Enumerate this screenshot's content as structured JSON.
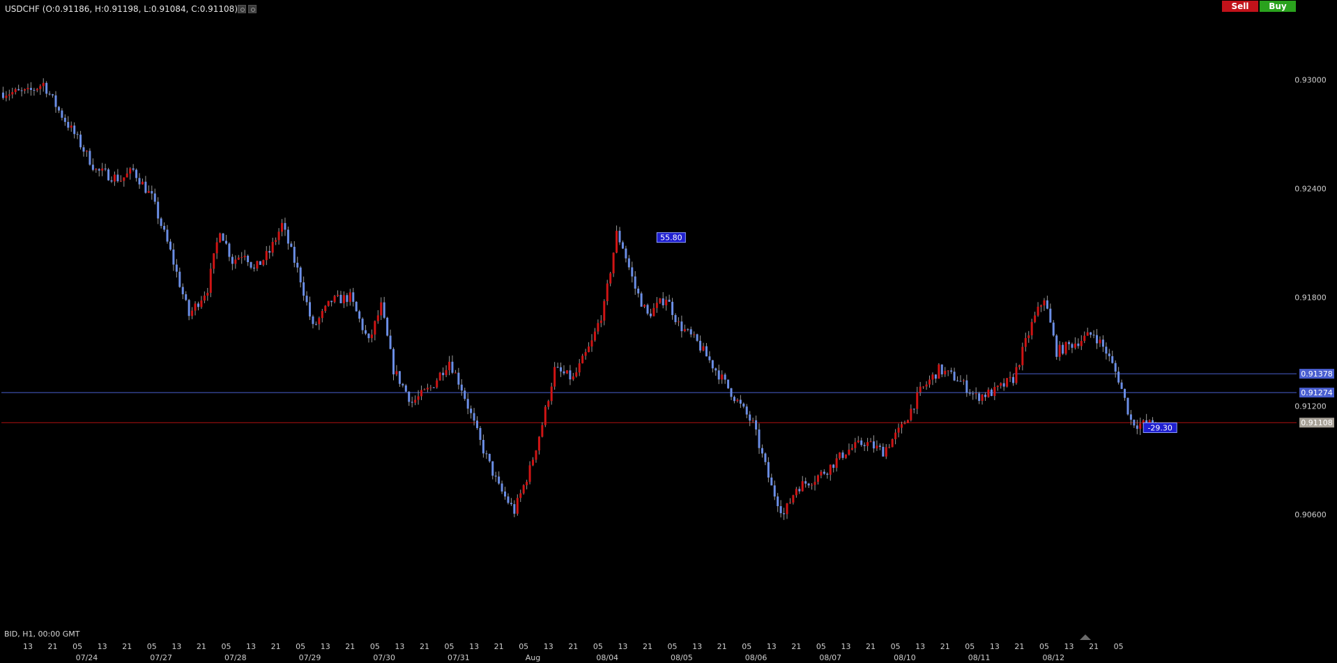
{
  "header": {
    "symbol_text": "USDCHF (O:0.91186, H:0.91198, L:0.91084, C:0.91108)",
    "sell_label": "Sell",
    "buy_label": "Buy"
  },
  "footer": {
    "info_text": "BID, H1, 00:00 GMT"
  },
  "colors": {
    "background": "#000000",
    "bull": "#d01414",
    "bear": "#6b8ee6",
    "blue_line": "#4a5fd0",
    "red_line": "#b01010",
    "sell": "#c1121a",
    "buy": "#2aa21d",
    "axis_text": "#cfcfcf"
  },
  "chart_data": {
    "type": "candlestick",
    "ylim": [
      0.9037,
      0.9311
    ],
    "yticks": [
      "0.93000",
      "0.92400",
      "0.91800",
      "0.91200",
      "0.90600"
    ],
    "hours_total": 364,
    "hour_ticks": [
      {
        "h": 0,
        "label": "13"
      },
      {
        "h": 8,
        "label": "21"
      },
      {
        "h": 16,
        "label": "05"
      },
      {
        "h": 24,
        "label": "13"
      },
      {
        "h": 32,
        "label": "21"
      },
      {
        "h": 40,
        "label": "05"
      },
      {
        "h": 48,
        "label": "13"
      },
      {
        "h": 56,
        "label": "21"
      },
      {
        "h": 64,
        "label": "05"
      },
      {
        "h": 72,
        "label": "13"
      },
      {
        "h": 80,
        "label": "21"
      },
      {
        "h": 88,
        "label": "05"
      },
      {
        "h": 96,
        "label": "13"
      },
      {
        "h": 104,
        "label": "21"
      },
      {
        "h": 112,
        "label": "05"
      },
      {
        "h": 120,
        "label": "13"
      },
      {
        "h": 128,
        "label": "21"
      },
      {
        "h": 136,
        "label": "05"
      },
      {
        "h": 144,
        "label": "13"
      },
      {
        "h": 152,
        "label": "21"
      },
      {
        "h": 160,
        "label": "05"
      },
      {
        "h": 168,
        "label": "13"
      },
      {
        "h": 176,
        "label": "21"
      },
      {
        "h": 184,
        "label": "05"
      },
      {
        "h": 192,
        "label": "13"
      },
      {
        "h": 200,
        "label": "21"
      },
      {
        "h": 208,
        "label": "05"
      },
      {
        "h": 216,
        "label": "13"
      },
      {
        "h": 224,
        "label": "21"
      },
      {
        "h": 232,
        "label": "05"
      },
      {
        "h": 240,
        "label": "13"
      },
      {
        "h": 248,
        "label": "21"
      },
      {
        "h": 256,
        "label": "05"
      },
      {
        "h": 264,
        "label": "13"
      },
      {
        "h": 272,
        "label": "21"
      },
      {
        "h": 280,
        "label": "05"
      },
      {
        "h": 288,
        "label": "13"
      },
      {
        "h": 296,
        "label": "21"
      },
      {
        "h": 304,
        "label": "05"
      },
      {
        "h": 312,
        "label": "13"
      },
      {
        "h": 320,
        "label": "21"
      },
      {
        "h": 328,
        "label": "05"
      },
      {
        "h": 336,
        "label": "13"
      },
      {
        "h": 344,
        "label": "21"
      },
      {
        "h": 352,
        "label": "05"
      }
    ],
    "date_ticks": [
      {
        "h": 19,
        "label": "07/24"
      },
      {
        "h": 43,
        "label": "07/27"
      },
      {
        "h": 67,
        "label": "07/28"
      },
      {
        "h": 91,
        "label": "07/29"
      },
      {
        "h": 115,
        "label": "07/30"
      },
      {
        "h": 139,
        "label": "07/31"
      },
      {
        "h": 163,
        "label": "Aug"
      },
      {
        "h": 187,
        "label": "08/04"
      },
      {
        "h": 211,
        "label": "08/05"
      },
      {
        "h": 235,
        "label": "08/06"
      },
      {
        "h": 259,
        "label": "08/07"
      },
      {
        "h": 283,
        "label": "08/10"
      },
      {
        "h": 307,
        "label": "08/11"
      },
      {
        "h": 331,
        "label": "08/12"
      }
    ],
    "anchors": [
      {
        "h": 0,
        "p": 0.9293
      },
      {
        "h": 5,
        "p": 0.9298
      },
      {
        "h": 10,
        "p": 0.9283
      },
      {
        "h": 15,
        "p": 0.927
      },
      {
        "h": 22,
        "p": 0.925
      },
      {
        "h": 30,
        "p": 0.9245
      },
      {
        "h": 34,
        "p": 0.925
      },
      {
        "h": 40,
        "p": 0.9235
      },
      {
        "h": 46,
        "p": 0.9205
      },
      {
        "h": 52,
        "p": 0.917
      },
      {
        "h": 58,
        "p": 0.9185
      },
      {
        "h": 62,
        "p": 0.9218
      },
      {
        "h": 66,
        "p": 0.92
      },
      {
        "h": 70,
        "p": 0.9205
      },
      {
        "h": 73,
        "p": 0.9195
      },
      {
        "h": 78,
        "p": 0.9205
      },
      {
        "h": 82,
        "p": 0.922
      },
      {
        "h": 88,
        "p": 0.919
      },
      {
        "h": 92,
        "p": 0.9163
      },
      {
        "h": 98,
        "p": 0.9178
      },
      {
        "h": 104,
        "p": 0.918
      },
      {
        "h": 110,
        "p": 0.9155
      },
      {
        "h": 114,
        "p": 0.9175
      },
      {
        "h": 118,
        "p": 0.914
      },
      {
        "h": 124,
        "p": 0.9122
      },
      {
        "h": 130,
        "p": 0.913
      },
      {
        "h": 136,
        "p": 0.9145
      },
      {
        "h": 140,
        "p": 0.913
      },
      {
        "h": 146,
        "p": 0.91
      },
      {
        "h": 152,
        "p": 0.9075
      },
      {
        "h": 157,
        "p": 0.9062
      },
      {
        "h": 162,
        "p": 0.9085
      },
      {
        "h": 166,
        "p": 0.911
      },
      {
        "h": 170,
        "p": 0.914
      },
      {
        "h": 176,
        "p": 0.9135
      },
      {
        "h": 182,
        "p": 0.9155
      },
      {
        "h": 186,
        "p": 0.9175
      },
      {
        "h": 190,
        "p": 0.9215
      },
      {
        "h": 192,
        "p": 0.9208
      },
      {
        "h": 196,
        "p": 0.9185
      },
      {
        "h": 200,
        "p": 0.917
      },
      {
        "h": 206,
        "p": 0.918
      },
      {
        "h": 210,
        "p": 0.9165
      },
      {
        "h": 216,
        "p": 0.9155
      },
      {
        "h": 222,
        "p": 0.914
      },
      {
        "h": 228,
        "p": 0.9125
      },
      {
        "h": 234,
        "p": 0.911
      },
      {
        "h": 240,
        "p": 0.9075
      },
      {
        "h": 244,
        "p": 0.906
      },
      {
        "h": 248,
        "p": 0.9075
      },
      {
        "h": 254,
        "p": 0.908
      },
      {
        "h": 258,
        "p": 0.9085
      },
      {
        "h": 264,
        "p": 0.9095
      },
      {
        "h": 270,
        "p": 0.91
      },
      {
        "h": 276,
        "p": 0.9095
      },
      {
        "h": 282,
        "p": 0.9108
      },
      {
        "h": 288,
        "p": 0.9128
      },
      {
        "h": 294,
        "p": 0.914
      },
      {
        "h": 300,
        "p": 0.9135
      },
      {
        "h": 306,
        "p": 0.9125
      },
      {
        "h": 312,
        "p": 0.9128
      },
      {
        "h": 318,
        "p": 0.9135
      },
      {
        "h": 324,
        "p": 0.9165
      },
      {
        "h": 328,
        "p": 0.918
      },
      {
        "h": 332,
        "p": 0.915
      },
      {
        "h": 338,
        "p": 0.9155
      },
      {
        "h": 344,
        "p": 0.916
      },
      {
        "h": 348,
        "p": 0.915
      },
      {
        "h": 352,
        "p": 0.9135
      },
      {
        "h": 356,
        "p": 0.9112
      },
      {
        "h": 358,
        "p": 0.911
      }
    ],
    "hlines": [
      {
        "price": 0.91274,
        "label": "0.91274",
        "color": "#4a5fd0",
        "label_bg": "#4a5fd0",
        "start_h": -1
      },
      {
        "price": 0.91378,
        "label": "0.91378",
        "color": "#4a5fd0",
        "label_bg": "#4a5fd0",
        "start_h": 318
      },
      {
        "price": 0.91108,
        "label": "0.91108",
        "color": "#b01010",
        "label_bg": "#a8a298",
        "start_h": -1
      }
    ],
    "annotations": [
      {
        "h": 203,
        "price": 0.9213,
        "label": "55.80"
      },
      {
        "h": 360,
        "price": 0.9108,
        "label": "-29.30"
      }
    ]
  }
}
